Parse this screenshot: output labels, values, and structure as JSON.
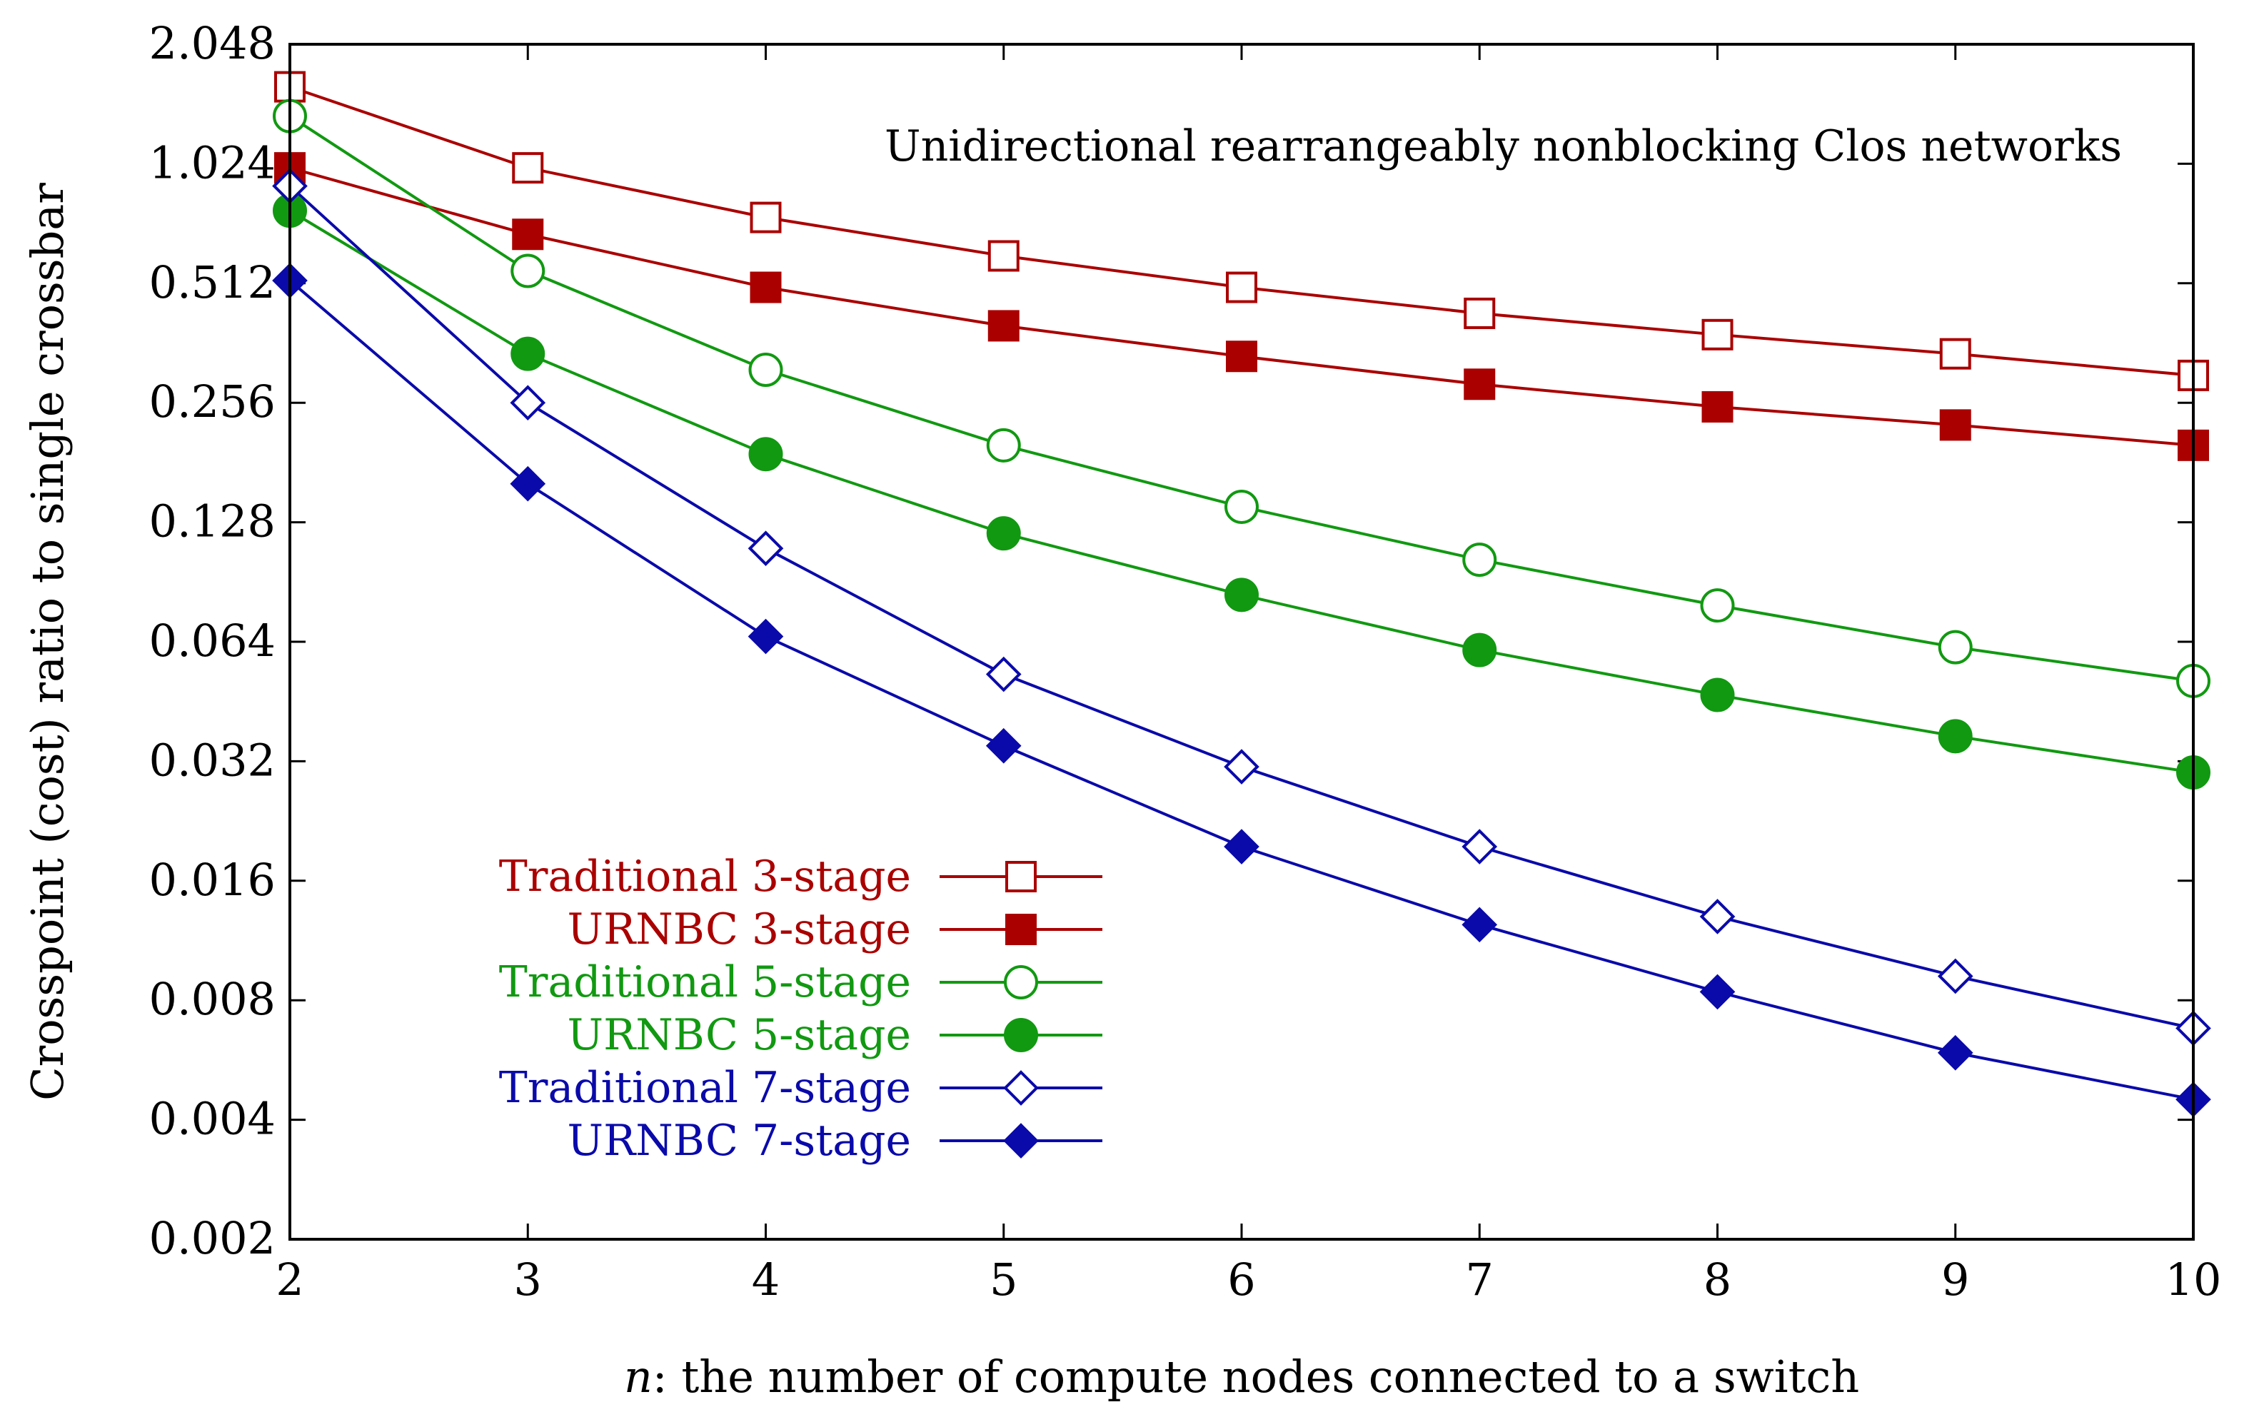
{
  "chart_data": {
    "type": "line",
    "title": "Unidirectional rearrangeably nonblocking Clos networks",
    "xlabel_var": "n",
    "xlabel_rest": ": the number of compute nodes connected to a switch",
    "ylabel": "Crosspoint (cost) ratio to single crossbar",
    "y_scale": "log2",
    "xlim": [
      2,
      10
    ],
    "ylim": [
      0.002,
      2.048
    ],
    "x_ticks": [
      2,
      3,
      4,
      5,
      6,
      7,
      8,
      9,
      10
    ],
    "x_tick_labels": [
      "2",
      "3",
      "4",
      "5",
      "6",
      "7",
      "8",
      "9",
      "10"
    ],
    "y_ticks": [
      0.002,
      0.004,
      0.008,
      0.016,
      0.032,
      0.064,
      0.128,
      0.256,
      0.512,
      1.024,
      2.048
    ],
    "y_tick_labels": [
      "0.002",
      "0.004",
      "0.008",
      "0.016",
      "0.032",
      "0.064",
      "0.128",
      "0.256",
      "0.512",
      "1.024",
      "2.048"
    ],
    "x": [
      2,
      3,
      4,
      5,
      6,
      7,
      8,
      9,
      10
    ],
    "series": [
      {
        "name": "Traditional 3-stage",
        "color": "#aa0000",
        "marker": "square",
        "filled": false,
        "values": [
          1.6,
          1.0,
          0.75,
          0.6,
          0.5,
          0.43,
          0.38,
          0.34,
          0.3
        ]
      },
      {
        "name": "URNBC 3-stage",
        "color": "#aa0000",
        "marker": "square",
        "filled": true,
        "values": [
          1.0,
          0.68,
          0.5,
          0.4,
          0.335,
          0.285,
          0.25,
          0.225,
          0.2
        ]
      },
      {
        "name": "Traditional 5-stage",
        "color": "#119911",
        "marker": "circle",
        "filled": false,
        "values": [
          1.35,
          0.55,
          0.31,
          0.2,
          0.14,
          0.103,
          0.079,
          0.062,
          0.051
        ]
      },
      {
        "name": "URNBC 5-stage",
        "color": "#119911",
        "marker": "circle",
        "filled": true,
        "values": [
          0.78,
          0.34,
          0.19,
          0.12,
          0.084,
          0.061,
          0.047,
          0.037,
          0.03
        ]
      },
      {
        "name": "Traditional 7-stage",
        "color": "#0a0aaa",
        "marker": "diamond",
        "filled": false,
        "values": [
          0.9,
          0.256,
          0.11,
          0.053,
          0.031,
          0.0195,
          0.013,
          0.0092,
          0.0068
        ]
      },
      {
        "name": "URNBC 7-stage",
        "color": "#0a0aaa",
        "marker": "diamond",
        "filled": true,
        "values": [
          0.52,
          0.16,
          0.066,
          0.035,
          0.0195,
          0.0124,
          0.0084,
          0.0059,
          0.0045
        ]
      }
    ],
    "legend_position": "lower-left",
    "grid": false
  }
}
